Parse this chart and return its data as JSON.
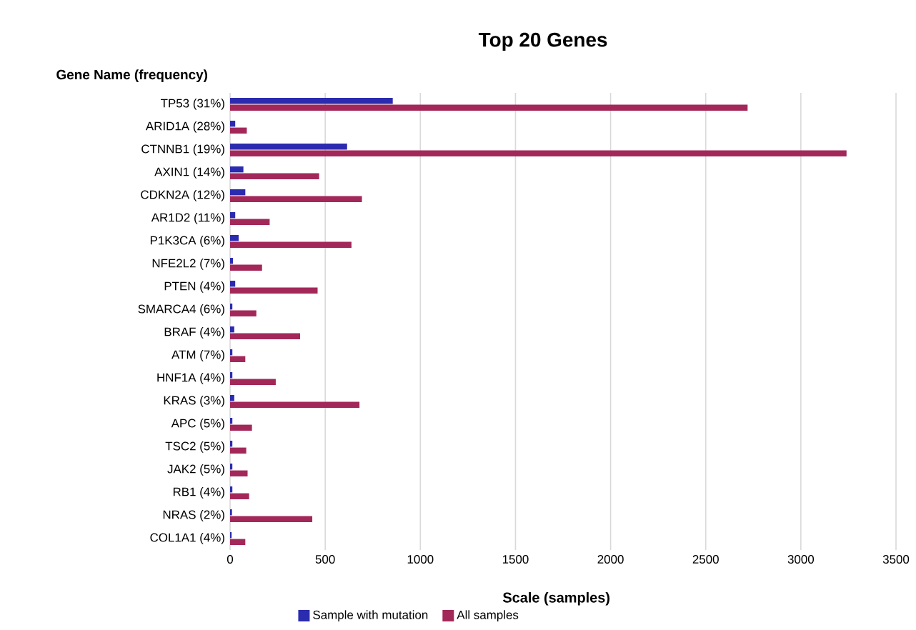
{
  "chart_data": {
    "type": "bar",
    "orientation": "horizontal",
    "title": "Top 20 Genes",
    "ylabel": "Gene Name (frequency)",
    "xlabel": "Scale (samples)",
    "categories": [
      "TP53 (31%)",
      "ARID1A (28%)",
      "CTNNB1 (19%)",
      "AXIN1 (14%)",
      "CDKN2A (12%)",
      "AR1D2 (11%)",
      "P1K3CA (6%)",
      "NFE2L2 (7%)",
      "PTEN (4%)",
      "SMARCA4 (6%)",
      "BRAF (4%)",
      "ATM (7%)",
      "HNF1A (4%)",
      "KRAS (3%)",
      "APC (5%)",
      "TSC2 (5%)",
      "JAK2 (5%)",
      "RB1 (4%)",
      "NRAS (2%)",
      "COL1A1 (4%)"
    ],
    "series": [
      {
        "name": "Sample with mutation",
        "color": "#2b2bb0",
        "values": [
          855,
          27,
          615,
          70,
          80,
          27,
          45,
          15,
          27,
          12,
          22,
          12,
          12,
          22,
          12,
          12,
          12,
          12,
          10,
          8
        ]
      },
      {
        "name": "All samples",
        "color": "#a3285a",
        "values": [
          2720,
          88,
          3240,
          468,
          693,
          208,
          638,
          168,
          460,
          138,
          368,
          80,
          240,
          680,
          115,
          85,
          92,
          100,
          432,
          80
        ]
      }
    ],
    "xlim": [
      0,
      3500
    ],
    "xticks": [
      0,
      500,
      1000,
      1500,
      2000,
      2500,
      3000,
      3500
    ],
    "grid": "x",
    "legend": "bottom"
  }
}
